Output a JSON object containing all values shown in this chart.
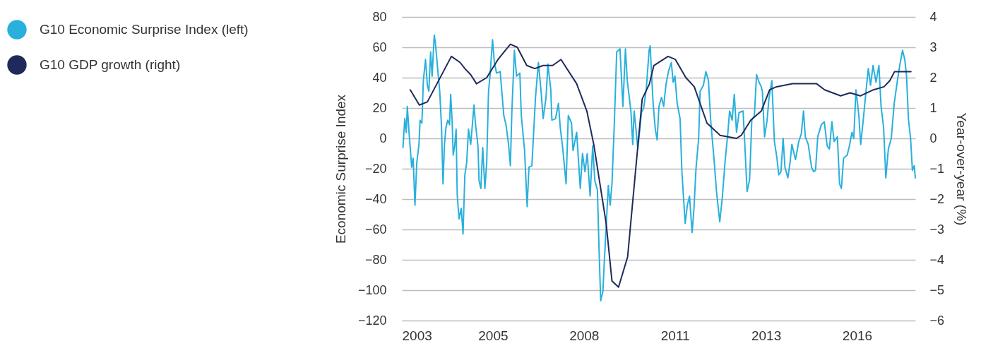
{
  "chart_data": {
    "type": "line",
    "xlabel": null,
    "ylabel": "Economic Surprise Index",
    "y2label": "Year-over-year (%)",
    "xlim": [
      2003,
      2017.1
    ],
    "xticks": [
      {
        "value": 2003,
        "label": "2003"
      },
      {
        "value": 2005.5,
        "label": "2005"
      },
      {
        "value": 2008,
        "label": "2008"
      },
      {
        "value": 2010.5,
        "label": "2011"
      },
      {
        "value": 2013,
        "label": "2013"
      },
      {
        "value": 2015.5,
        "label": "2016"
      }
    ],
    "ylim": [
      -120,
      80
    ],
    "yticks": [
      -120,
      -100,
      -80,
      -60,
      -40,
      -20,
      0,
      20,
      40,
      60,
      80
    ],
    "y2lim": [
      -6,
      4
    ],
    "y2ticks": [
      -6,
      -5,
      -4,
      -3,
      -2,
      -1,
      0,
      1,
      2,
      3,
      4
    ],
    "grid": "y",
    "legend": "top left",
    "marker": "none",
    "line_style": "solid",
    "series": [
      {
        "name": "G10 Economic Surprise Index (left)",
        "color": "#29b0dc",
        "x": [
          2003.03,
          2003.08,
          2003.12,
          2003.15,
          2003.2,
          2003.27,
          2003.31,
          2003.36,
          2003.41,
          2003.47,
          2003.5,
          2003.55,
          2003.59,
          2003.65,
          2003.7,
          2003.74,
          2003.79,
          2003.83,
          2003.89,
          2003.92,
          2003.99,
          2004.04,
          2004.09,
          2004.13,
          2004.17,
          2004.21,
          2004.26,
          2004.31,
          2004.34,
          2004.38,
          2004.41,
          2004.45,
          2004.49,
          2004.52,
          2004.57,
          2004.63,
          2004.68,
          2004.73,
          2004.78,
          2004.83,
          2004.89,
          2004.94,
          2004.98,
          2005.02,
          2005.09,
          2005.12,
          2005.17,
          2005.22,
          2005.28,
          2005.33,
          2005.38,
          2005.42,
          2005.49,
          2005.54,
          2005.6,
          2005.7,
          2005.8,
          2005.86,
          2005.93,
          2005.98,
          2006.02,
          2006.09,
          2006.15,
          2006.24,
          2006.28,
          2006.37,
          2006.44,
          2006.49,
          2006.57,
          2006.67,
          2006.75,
          2006.83,
          2006.88,
          2006.96,
          2007.01,
          2007.09,
          2007.12,
          2007.22,
          2007.3,
          2007.35,
          2007.42,
          2007.51,
          2007.57,
          2007.66,
          2007.7,
          2007.8,
          2007.9,
          2007.96,
          2008.03,
          2008.09,
          2008.17,
          2008.24,
          2008.3,
          2008.37,
          2008.41,
          2008.46,
          2008.52,
          2008.56,
          2008.61,
          2008.67,
          2008.72,
          2008.77,
          2008.83,
          2008.9,
          2008.99,
          2009.07,
          2009.14,
          2009.19,
          2009.29,
          2009.34,
          2009.38,
          2009.48,
          2009.58,
          2009.64,
          2009.71,
          2009.79,
          2009.82,
          2009.85,
          2009.9,
          2009.96,
          2010.01,
          2010.06,
          2010.13,
          2010.19,
          2010.25,
          2010.32,
          2010.4,
          2010.45,
          2010.5,
          2010.56,
          2010.64,
          2010.69,
          2010.74,
          2010.78,
          2010.84,
          2010.9,
          2010.97,
          2011.02,
          2011.08,
          2011.15,
          2011.19,
          2011.28,
          2011.35,
          2011.42,
          2011.48,
          2011.58,
          2011.64,
          2011.73,
          2011.8,
          2011.88,
          2011.95,
          2012.0,
          2012.07,
          2012.13,
          2012.19,
          2012.26,
          2012.37,
          2012.42,
          2012.48,
          2012.55,
          2012.61,
          2012.68,
          2012.74,
          2012.81,
          2012.87,
          2012.9,
          2012.96,
          2013.03,
          2013.08,
          2013.16,
          2013.23,
          2013.3,
          2013.35,
          2013.41,
          2013.47,
          2013.52,
          2013.6,
          2013.66,
          2013.71,
          2013.81,
          2013.9,
          2013.97,
          2014.03,
          2014.08,
          2014.16,
          2014.25,
          2014.31,
          2014.36,
          2014.42,
          2014.52,
          2014.6,
          2014.68,
          2014.74,
          2014.81,
          2014.87,
          2014.96,
          2015.02,
          2015.07,
          2015.13,
          2015.23,
          2015.29,
          2015.36,
          2015.41,
          2015.47,
          2015.55,
          2015.6,
          2015.67,
          2015.75,
          2015.81,
          2015.87,
          2015.94,
          2016.02,
          2016.1,
          2016.16,
          2016.23,
          2016.29,
          2016.36,
          2016.44,
          2016.52,
          2016.62,
          2016.68,
          2016.75,
          2016.81,
          2016.86,
          2016.91,
          2016.97,
          2017.02,
          2017.07,
          2017.1
        ],
        "values": [
          -6,
          13,
          4,
          21,
          3,
          -19,
          -13,
          -44,
          -16,
          -4,
          12,
          10,
          38,
          52,
          35,
          31,
          57,
          41,
          68,
          63,
          44,
          31,
          7,
          -30,
          -4,
          7,
          12,
          9,
          29,
          12,
          -11,
          -5,
          6,
          -37,
          -53,
          -46,
          -63,
          -24,
          -16,
          6,
          -4,
          10,
          22,
          10,
          -5,
          -28,
          -33,
          -6,
          -33,
          -16,
          31,
          41,
          65,
          50,
          43,
          44,
          15,
          9,
          -4,
          -18,
          17,
          58,
          41,
          43,
          15,
          -8,
          -45,
          -19,
          -18,
          27,
          50,
          29,
          13,
          27,
          49,
          32,
          12,
          13,
          23,
          7,
          -7,
          -30,
          15,
          10,
          -8,
          4,
          -33,
          -10,
          -22,
          -10,
          -38,
          -5,
          -28,
          -34,
          -69,
          -107,
          -101,
          -81,
          -58,
          -31,
          -44,
          -30,
          7,
          57,
          59,
          21,
          59,
          38,
          18,
          -4,
          18,
          -7,
          17,
          20,
          32,
          58,
          61,
          46,
          23,
          6,
          -1,
          21,
          27,
          21,
          35,
          44,
          50,
          37,
          41,
          23,
          13,
          -22,
          -41,
          -56,
          -44,
          -38,
          -62,
          -47,
          -19,
          0,
          31,
          35,
          44,
          38,
          12,
          -16,
          -35,
          -55,
          -39,
          -14,
          3,
          18,
          12,
          29,
          4,
          17,
          18,
          -5,
          -35,
          -27,
          12,
          15,
          42,
          37,
          34,
          31,
          1,
          12,
          26,
          38,
          -2,
          -13,
          -24,
          -22,
          0,
          -19,
          -26,
          -16,
          -4,
          -14,
          -2,
          3,
          18,
          1,
          -4,
          -19,
          -22,
          -21,
          1,
          9,
          11,
          -5,
          -7,
          11,
          -2,
          1,
          -30,
          -33,
          -13,
          -11,
          -5,
          4,
          0,
          32,
          15,
          -4,
          12,
          32,
          46,
          35,
          48,
          37,
          48,
          21,
          7,
          -26,
          -7,
          0,
          23,
          40,
          49,
          58,
          52,
          41,
          13,
          0,
          -21,
          -18,
          -26
        ]
      },
      {
        "name": "G10 GDP growth (right)",
        "color": "#1f2a5c",
        "axis": "y2",
        "x": [
          2003.23,
          2003.48,
          2003.7,
          2004.36,
          2004.6,
          2004.73,
          2004.89,
          2005.05,
          2005.33,
          2005.64,
          2005.98,
          2006.17,
          2006.43,
          2006.65,
          2006.88,
          2007.14,
          2007.37,
          2007.8,
          2008.08,
          2008.27,
          2008.61,
          2008.77,
          2008.95,
          2009.2,
          2009.6,
          2009.8,
          2009.92,
          2010.31,
          2010.51,
          2010.8,
          2011.03,
          2011.38,
          2011.74,
          2012.19,
          2012.32,
          2012.58,
          2012.87,
          2013.1,
          2013.29,
          2013.73,
          2014.39,
          2014.61,
          2015.05,
          2015.31,
          2015.59,
          2015.95,
          2016.24,
          2016.4,
          2016.53,
          2016.98
        ],
        "values": [
          1.6,
          1.1,
          1.2,
          2.7,
          2.5,
          2.3,
          2.1,
          1.8,
          2.0,
          2.6,
          3.1,
          3.0,
          2.4,
          2.3,
          2.4,
          2.4,
          2.6,
          1.8,
          0.9,
          -0.2,
          -2.8,
          -4.7,
          -4.9,
          -3.9,
          1.3,
          1.8,
          2.4,
          2.7,
          2.6,
          2.0,
          1.7,
          0.5,
          0.1,
          0.0,
          0.1,
          0.6,
          0.9,
          1.6,
          1.7,
          1.8,
          1.8,
          1.6,
          1.4,
          1.5,
          1.4,
          1.6,
          1.7,
          1.9,
          2.2,
          2.2
        ]
      }
    ]
  }
}
